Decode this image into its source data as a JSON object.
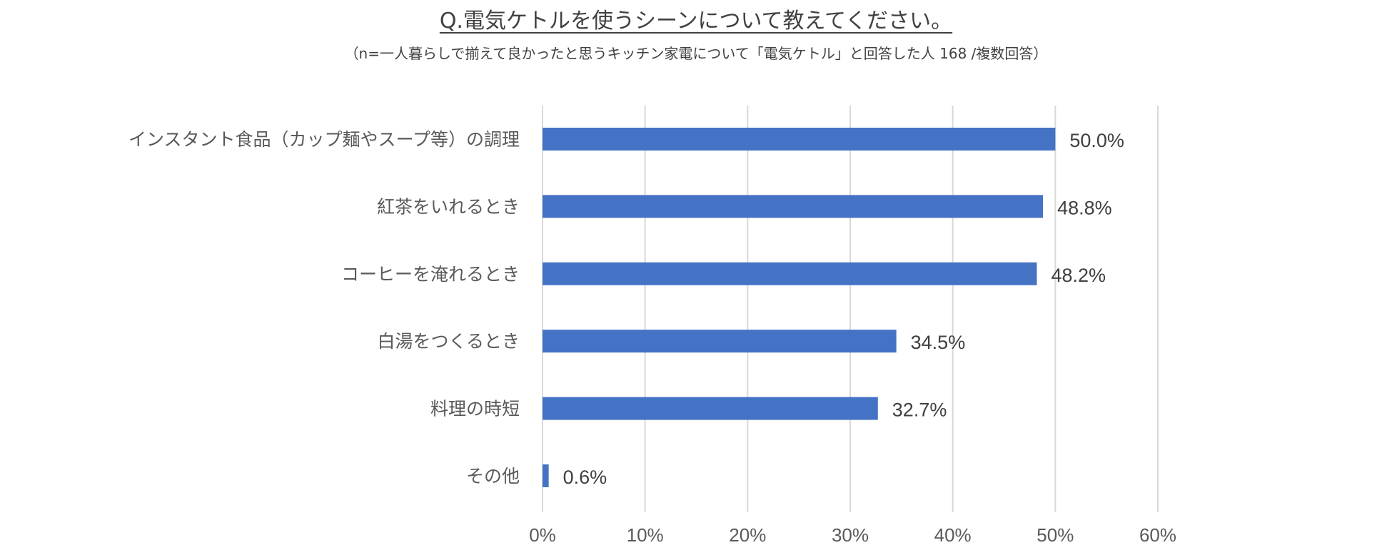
{
  "header": {
    "title": "Q.電気ケトルを使うシーンについて教えてください。",
    "subtitle": "（n=一人暮らしで揃えて良かったと思うキッチン家電について「電気ケトル」と回答した人 168 /複数回答）"
  },
  "colors": {
    "bar": "#4472C4",
    "grid": "#D9D9D9",
    "text": "#595959",
    "value_text": "#404040"
  },
  "chart_data": {
    "type": "bar",
    "orientation": "horizontal",
    "title": "Q.電気ケトルを使うシーンについて教えてください。",
    "subtitle": "（n=一人暮らしで揃えて良かったと思うキッチン家電について「電気ケトル」と回答した人 168 /複数回答）",
    "categories": [
      "インスタント食品（カップ麺やスープ等）の調理",
      "紅茶をいれるとき",
      "コーヒーを淹れるとき",
      "白湯をつくるとき",
      "料理の時短",
      "その他"
    ],
    "values": [
      50.0,
      48.8,
      48.2,
      34.5,
      32.7,
      0.6
    ],
    "value_labels": [
      "50.0%",
      "48.8%",
      "48.2%",
      "34.5%",
      "32.7%",
      "0.6%"
    ],
    "xlim": [
      0,
      60
    ],
    "x_ticks": [
      0,
      10,
      20,
      30,
      40,
      50,
      60
    ],
    "x_tick_labels": [
      "0%",
      "10%",
      "20%",
      "30%",
      "40%",
      "50%",
      "60%"
    ],
    "xlabel": "",
    "ylabel": "",
    "grid": "vertical",
    "legend": "none"
  }
}
